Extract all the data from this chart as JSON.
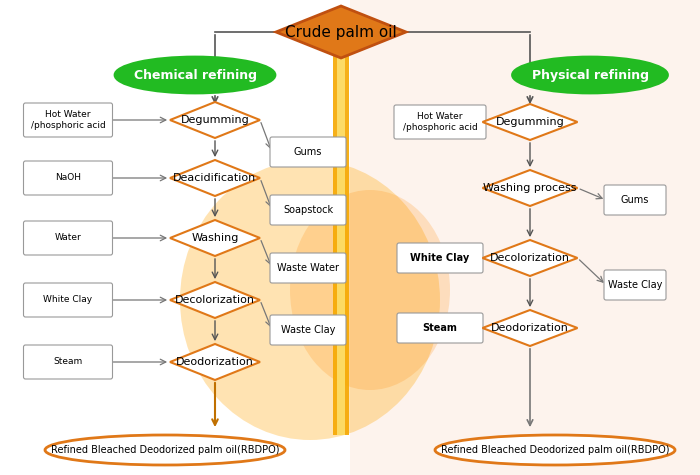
{
  "title": "Crude palm oil",
  "chemical_label": "Chemical refining",
  "physical_label": "Physical refining",
  "rbdpo_text": "Refined Bleached Deodorized palm oil(RBDPO)",
  "left_inputs": [
    "Hot Water\n/phosphoric acid",
    "NaOH",
    "Water",
    "White Clay",
    "Steam"
  ],
  "left_diamonds": [
    "Degumming",
    "Deacidification",
    "Washing",
    "Decolorization",
    "Deodorization"
  ],
  "left_byproducts": [
    "Gums",
    "Soapstock",
    "Waste Water",
    "Waste Clay"
  ],
  "right_inputs": [
    "Hot Water\n/phosphoric acid",
    "White Clay",
    "Steam"
  ],
  "right_diamonds": [
    "Degumming",
    "Washing process",
    "Decolorization",
    "Deodorization"
  ],
  "right_byproducts": [
    "Gums",
    "Waste Clay"
  ],
  "orange_bar_color": "#F5A800",
  "diamond_edge_color": "#E07818",
  "green_color": "#22BB22",
  "orange_fill": "#E07818",
  "rbdpo_edge": "#E07818",
  "arrow_color": "#777777",
  "orange_arrow_color": "#C07000",
  "box_edge": "#999999",
  "fig_w": 7.0,
  "fig_h": 4.75,
  "dpi": 100
}
